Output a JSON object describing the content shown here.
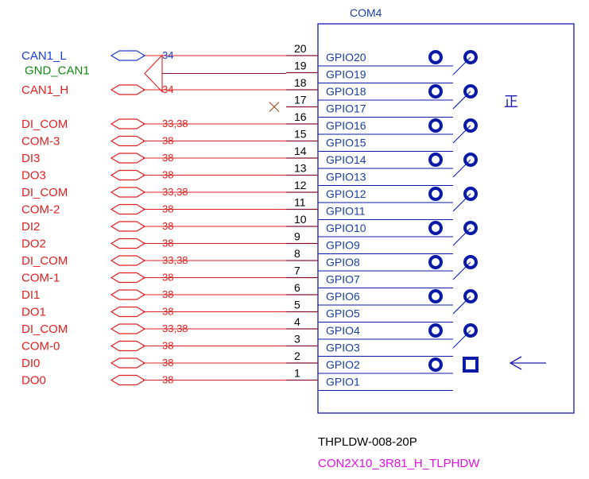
{
  "component": {
    "designator": "COM4",
    "part_number": "THPLDW-008-20P",
    "footprint": "CON2X10_3R81_H_TLPHDW",
    "orientation_mark": "正"
  },
  "pins": [
    {
      "num": "20",
      "name": "GPIO20",
      "net": "CAN1_L",
      "net_color": "#1a3fcf",
      "page_ref": "34",
      "nc": false
    },
    {
      "num": "19",
      "name": "GPIO19",
      "net": "GND_CAN1",
      "net_color": "#118a11",
      "page_ref": "",
      "nc": false
    },
    {
      "num": "18",
      "name": "GPIO18",
      "net": "CAN1_H",
      "net_color": "#e02020",
      "page_ref": "34",
      "nc": false
    },
    {
      "num": "17",
      "name": "GPIO17",
      "net": "",
      "net_color": "",
      "page_ref": "",
      "nc": true
    },
    {
      "num": "16",
      "name": "GPIO16",
      "net": "DI_COM",
      "net_color": "#e02020",
      "page_ref": "33,38",
      "nc": false
    },
    {
      "num": "15",
      "name": "GPIO15",
      "net": "COM-3",
      "net_color": "#e02020",
      "page_ref": "38",
      "nc": false
    },
    {
      "num": "14",
      "name": "GPIO14",
      "net": "DI3",
      "net_color": "#e02020",
      "page_ref": "38",
      "nc": false
    },
    {
      "num": "13",
      "name": "GPIO13",
      "net": "DO3",
      "net_color": "#e02020",
      "page_ref": "38",
      "nc": false
    },
    {
      "num": "12",
      "name": "GPIO12",
      "net": "DI_COM",
      "net_color": "#e02020",
      "page_ref": "33,38",
      "nc": false
    },
    {
      "num": "11",
      "name": "GPIO11",
      "net": "COM-2",
      "net_color": "#e02020",
      "page_ref": "38",
      "nc": false
    },
    {
      "num": "10",
      "name": "GPIO10",
      "net": "DI2",
      "net_color": "#e02020",
      "page_ref": "38",
      "nc": false
    },
    {
      "num": "9",
      "name": "GPIO9",
      "net": "DO2",
      "net_color": "#e02020",
      "page_ref": "38",
      "nc": false
    },
    {
      "num": "8",
      "name": "GPIO8",
      "net": "DI_COM",
      "net_color": "#e02020",
      "page_ref": "33,38",
      "nc": false
    },
    {
      "num": "7",
      "name": "GPIO7",
      "net": "COM-1",
      "net_color": "#e02020",
      "page_ref": "38",
      "nc": false
    },
    {
      "num": "6",
      "name": "GPIO6",
      "net": "DI1",
      "net_color": "#e02020",
      "page_ref": "38",
      "nc": false
    },
    {
      "num": "5",
      "name": "GPIO5",
      "net": "DO1",
      "net_color": "#e02020",
      "page_ref": "38",
      "nc": false
    },
    {
      "num": "4",
      "name": "GPIO4",
      "net": "DI_COM",
      "net_color": "#e02020",
      "page_ref": "33,38",
      "nc": false
    },
    {
      "num": "3",
      "name": "GPIO3",
      "net": "COM-0",
      "net_color": "#e02020",
      "page_ref": "38",
      "nc": false
    },
    {
      "num": "2",
      "name": "GPIO2",
      "net": "DI0",
      "net_color": "#e02020",
      "page_ref": "38",
      "nc": false
    },
    {
      "num": "1",
      "name": "GPIO1",
      "net": "DO0",
      "net_color": "#e02020",
      "page_ref": "38",
      "nc": false
    }
  ],
  "colors": {
    "pin_wire": "#8a1030",
    "wire": "#e02020",
    "body_outline": "#1a1ab0",
    "pin_name": "#1a3fa0",
    "pin_number": "#000000",
    "pad": "#0a1aa8",
    "footprint_label": "#e010e0",
    "nc_mark": "#9a4a1a"
  }
}
